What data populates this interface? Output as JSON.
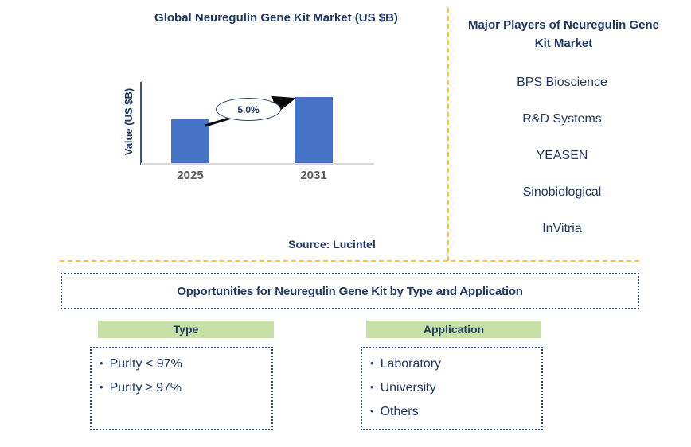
{
  "chart": {
    "title": "Global Neuregulin Gene Kit Market (US $B)",
    "ylabel": "Value (US $B)",
    "growth_label": "5.0%",
    "source": "Source: Lucintel"
  },
  "chart_data": {
    "type": "bar",
    "title": "Global Neuregulin Gene Kit Market (US $B)",
    "categories": [
      "2025",
      "2031"
    ],
    "values": [
      55,
      83
    ],
    "values_note": "axis unlabeled; values are relative bar magnitudes",
    "ylabel": "Value (US $B)",
    "xlabel": "",
    "annotation": "5.0%",
    "bar_color": "#4472C4",
    "grid": false,
    "legend": false
  },
  "players": {
    "title": "Major Players of Neuregulin Gene Kit Market",
    "items": [
      "BPS Bioscience",
      "R&D Systems",
      "YEASEN",
      "Sinobiological",
      "InVitria"
    ]
  },
  "opportunities": {
    "title": "Opportunities for Neuregulin Gene Kit by Type and Application",
    "columns": [
      {
        "header": "Type",
        "items": [
          "Purity < 97%",
          "Purity ≥ 97%"
        ]
      },
      {
        "header": "Application",
        "items": [
          "Laboratory",
          "University",
          "Others"
        ]
      }
    ]
  },
  "colors": {
    "navy": "#1F3864",
    "bar_blue": "#4472C4",
    "green_header": "#C6E0A5",
    "orange_dashed": "#FFC233",
    "tick_gray": "#595959",
    "axis_gray": "#D9D9D9"
  }
}
